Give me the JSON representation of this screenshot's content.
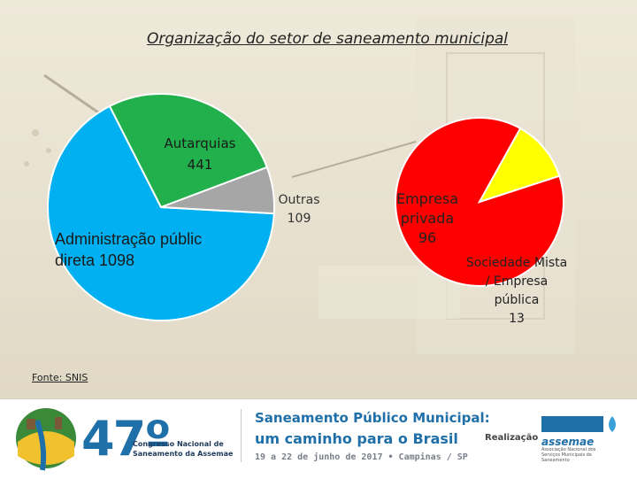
{
  "title": "Organização do setor de saneamento municipal",
  "source": "Fonte: SNIS",
  "chart_data": [
    {
      "type": "pie",
      "slices": [
        {
          "label": "Administração pública direta",
          "value": 1098,
          "color": "#00b0f0"
        },
        {
          "label": "Autarquias",
          "value": 441,
          "color": "#21b04b"
        },
        {
          "label": "Outras",
          "value": 109,
          "color": "#a6a6a6"
        }
      ],
      "labels": {
        "admin_line1": "Administração públic",
        "admin_line2": "direta 1098",
        "autarq_line1": "Autarquias",
        "autarq_line2": "441",
        "outras_line1": "Outras",
        "outras_line2": "109"
      }
    },
    {
      "type": "pie",
      "slices": [
        {
          "label": "Empresa privada",
          "value": 96,
          "color": "#ff0000"
        },
        {
          "label": "Sociedade Mista / Empresa pública",
          "value": 13,
          "color": "#ffff00"
        }
      ],
      "labels": {
        "priv_line1": "Empresa",
        "priv_line2": "privada",
        "priv_line3": "96",
        "mista_line1": "Sociedade Mista",
        "mista_line2": "/ Empresa",
        "mista_line3": "pública",
        "mista_line4": "13"
      }
    }
  ],
  "footer": {
    "edition": "47º",
    "event_line1": "Congresso Nacional de",
    "event_line2": "Saneamento da Assemae",
    "headline1": "Saneamento Público Municipal:",
    "headline2": "um caminho para o Brasil",
    "dates": "19 a 22 de junho de 2017 • Campinas / SP",
    "realizacao": "Realização",
    "org": "assemae",
    "org_sub": "Associação Nacional dos Serviços Municipais de Saneamento"
  }
}
